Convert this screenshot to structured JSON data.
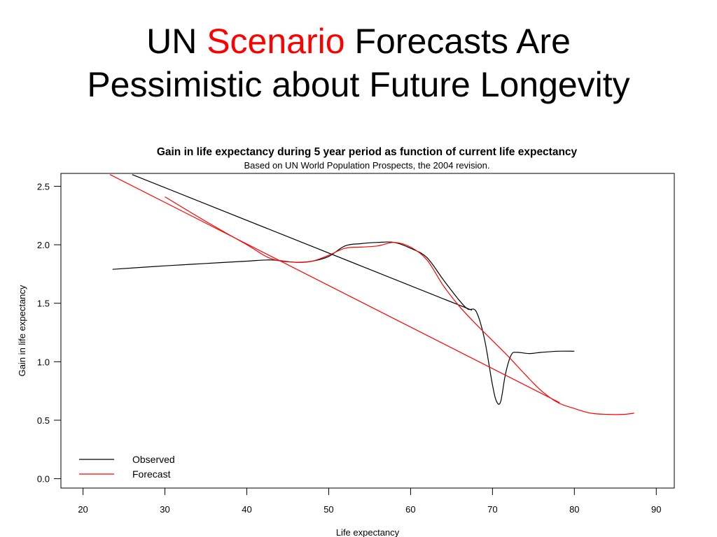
{
  "slide": {
    "title_part1": "UN ",
    "title_accent": "Scenario",
    "title_part2": " Forecasts Are",
    "title_line2": "Pessimistic about Future Longevity",
    "accent_color": "#ff0000"
  },
  "chart_data": {
    "type": "line",
    "title": "Gain in life expectancy during 5 year period as function of current life expectancy",
    "subtitle": "Based on UN World Population Prospects, the 2004 revision.",
    "xlabel": "Life expectancy",
    "ylabel": "Gain in life expectancy",
    "xlim": [
      17.3,
      92.2
    ],
    "ylim": [
      -0.08,
      2.61
    ],
    "xticks": [
      20,
      30,
      40,
      50,
      60,
      70,
      80,
      90
    ],
    "yticks": [
      0.0,
      0.5,
      1.0,
      1.5,
      2.0,
      2.5
    ],
    "ytick_labels": [
      "0.0",
      "0.5",
      "1.0",
      "1.5",
      "2.0",
      "2.5"
    ],
    "grid": false,
    "legend_position": "bottom-left",
    "series": [
      {
        "name": "Observed",
        "color": "#000000",
        "kind": "smooth",
        "points": [
          [
            23.6,
            1.79
          ],
          [
            30,
            1.82
          ],
          [
            35,
            1.84
          ],
          [
            40,
            1.86
          ],
          [
            43,
            1.87
          ],
          [
            46,
            1.85
          ],
          [
            48,
            1.86
          ],
          [
            50,
            1.9
          ],
          [
            52,
            1.99
          ],
          [
            54,
            2.01
          ],
          [
            56,
            2.02
          ],
          [
            58,
            2.02
          ],
          [
            60,
            1.97
          ],
          [
            62,
            1.89
          ],
          [
            64,
            1.7
          ],
          [
            66,
            1.52
          ],
          [
            67,
            1.45
          ],
          [
            68,
            1.43
          ],
          [
            69,
            1.2
          ],
          [
            70,
            0.8
          ],
          [
            70.5,
            0.66
          ],
          [
            71,
            0.66
          ],
          [
            71.6,
            0.9
          ],
          [
            72.3,
            1.06
          ],
          [
            73,
            1.08
          ],
          [
            74.5,
            1.07
          ],
          [
            76,
            1.08
          ],
          [
            78,
            1.09
          ],
          [
            80,
            1.09
          ]
        ]
      },
      {
        "name": "Observed",
        "color": "#000000",
        "kind": "straight",
        "points": [
          [
            26,
            2.6
          ],
          [
            67.5,
            1.44
          ]
        ]
      },
      {
        "name": "Forecast",
        "color": "#ff0000",
        "kind": "smooth",
        "points": [
          [
            30,
            2.41
          ],
          [
            35,
            2.2
          ],
          [
            40,
            2.0
          ],
          [
            43,
            1.88
          ],
          [
            46,
            1.85
          ],
          [
            48,
            1.86
          ],
          [
            50,
            1.91
          ],
          [
            52,
            1.97
          ],
          [
            54,
            1.98
          ],
          [
            56,
            1.99
          ],
          [
            58,
            2.02
          ],
          [
            60,
            1.98
          ],
          [
            62,
            1.87
          ],
          [
            64,
            1.65
          ],
          [
            66,
            1.47
          ],
          [
            68,
            1.32
          ],
          [
            70,
            1.18
          ],
          [
            72,
            1.04
          ],
          [
            74,
            0.89
          ],
          [
            76,
            0.75
          ],
          [
            78,
            0.65
          ],
          [
            80,
            0.6
          ],
          [
            82,
            0.56
          ],
          [
            84,
            0.55
          ],
          [
            86,
            0.55
          ],
          [
            87.3,
            0.56
          ]
        ]
      },
      {
        "name": "Forecast",
        "color": "#ff0000",
        "kind": "straight",
        "points": [
          [
            23.3,
            2.6
          ],
          [
            78.2,
            0.65
          ]
        ]
      }
    ],
    "legend": [
      {
        "label": "Observed",
        "color": "#000000"
      },
      {
        "label": "Forecast",
        "color": "#ff0000"
      }
    ]
  }
}
